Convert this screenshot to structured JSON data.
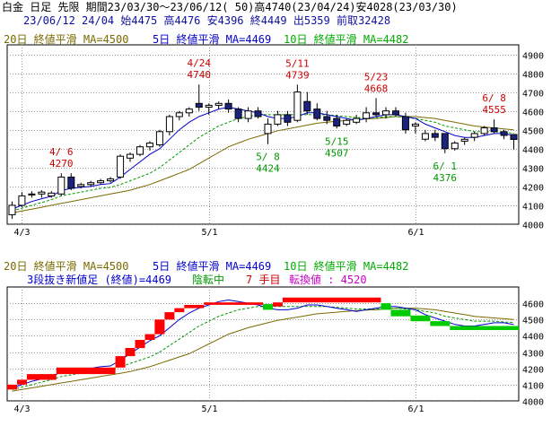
{
  "header": {
    "line1": "白金 日足 先限 期間23/03/30～23/06/12( 50)高4740(23/04/24)安4028(23/03/30)",
    "line2": "23/06/12 24/04 始4475 高4476 安4396 終4449 出5359 前取32428"
  },
  "colors": {
    "up_fill": "#ffffff",
    "down_fill": "#1a237e",
    "ma5": "#0000cc",
    "ma10": "#009900",
    "ma20": "#7a6a00",
    "ann_high": "#cc0000",
    "ann_low": "#009900",
    "brick_up": "#ff0000",
    "brick_down": "#00cc00",
    "grid": "#9a9a9a",
    "legend_ma20": "#7a6a00",
    "legend_ma5": "#0000cc",
    "legend_ma10": "#00aa00",
    "magenta": "#cc00cc"
  },
  "legend": {
    "ma20": "20日 終値平滑 MA=4500",
    "ma5": "5日 終値平滑 MA=4469",
    "ma10": "10日 終値平滑 MA=4482"
  },
  "lower_info": {
    "name": "3段抜き新値足 (終値)=4469",
    "state": "陰転中",
    "step": "7 手目",
    "reversal": "転換値 : 4520"
  },
  "chart_data": [
    {
      "type": "candlestick",
      "title": "白金 日足 先限",
      "x_ticks": [
        {
          "i": 1,
          "label": "4/3"
        },
        {
          "i": 20,
          "label": "5/1"
        },
        {
          "i": 41,
          "label": "6/1"
        }
      ],
      "ylim": [
        4000,
        4950
      ],
      "y_ticks": [
        4000,
        4100,
        4200,
        4300,
        4400,
        4500,
        4600,
        4700,
        4800,
        4900
      ],
      "ohlc": [
        [
          4050,
          4120,
          4028,
          4100
        ],
        [
          4100,
          4170,
          4090,
          4150
        ],
        [
          4160,
          4175,
          4140,
          4155
        ],
        [
          4160,
          4180,
          4140,
          4170
        ],
        [
          4150,
          4175,
          4140,
          4165
        ],
        [
          4160,
          4270,
          4150,
          4250
        ],
        [
          4250,
          4270,
          4180,
          4190
        ],
        [
          4200,
          4220,
          4190,
          4210
        ],
        [
          4210,
          4230,
          4200,
          4220
        ],
        [
          4220,
          4240,
          4210,
          4230
        ],
        [
          4230,
          4250,
          4220,
          4240
        ],
        [
          4250,
          4370,
          4240,
          4360
        ],
        [
          4350,
          4380,
          4330,
          4370
        ],
        [
          4370,
          4420,
          4360,
          4410
        ],
        [
          4410,
          4440,
          4390,
          4430
        ],
        [
          4420,
          4500,
          4410,
          4490
        ],
        [
          4490,
          4580,
          4470,
          4570
        ],
        [
          4570,
          4600,
          4550,
          4590
        ],
        [
          4590,
          4620,
          4570,
          4610
        ],
        [
          4640,
          4740,
          4600,
          4620
        ],
        [
          4620,
          4640,
          4580,
          4630
        ],
        [
          4630,
          4650,
          4610,
          4640
        ],
        [
          4640,
          4660,
          4590,
          4610
        ],
        [
          4610,
          4620,
          4540,
          4560
        ],
        [
          4560,
          4620,
          4540,
          4600
        ],
        [
          4600,
          4620,
          4560,
          4570
        ],
        [
          4480,
          4560,
          4424,
          4530
        ],
        [
          4530,
          4600,
          4520,
          4580
        ],
        [
          4580,
          4600,
          4520,
          4540
        ],
        [
          4550,
          4739,
          4540,
          4700
        ],
        [
          4650,
          4700,
          4580,
          4600
        ],
        [
          4610,
          4640,
          4550,
          4560
        ],
        [
          4570,
          4600,
          4530,
          4550
        ],
        [
          4560,
          4580,
          4507,
          4520
        ],
        [
          4530,
          4560,
          4520,
          4550
        ],
        [
          4540,
          4580,
          4530,
          4560
        ],
        [
          4560,
          4620,
          4540,
          4590
        ],
        [
          4590,
          4668,
          4570,
          4580
        ],
        [
          4580,
          4620,
          4560,
          4600
        ],
        [
          4600,
          4620,
          4570,
          4580
        ],
        [
          4570,
          4590,
          4480,
          4500
        ],
        [
          4520,
          4540,
          4480,
          4530
        ],
        [
          4450,
          4500,
          4440,
          4480
        ],
        [
          4480,
          4500,
          4440,
          4460
        ],
        [
          4480,
          4480,
          4376,
          4400
        ],
        [
          4400,
          4440,
          4390,
          4430
        ],
        [
          4440,
          4460,
          4420,
          4450
        ],
        [
          4460,
          4490,
          4440,
          4480
        ],
        [
          4480,
          4520,
          4470,
          4510
        ],
        [
          4510,
          4555,
          4480,
          4490
        ],
        [
          4490,
          4500,
          4450,
          4470
        ],
        [
          4475,
          4476,
          4396,
          4449
        ]
      ],
      "ma5": [
        4080,
        4100,
        4120,
        4135,
        4148,
        4178,
        4190,
        4195,
        4200,
        4210,
        4215,
        4250,
        4290,
        4330,
        4370,
        4400,
        4450,
        4500,
        4540,
        4570,
        4590,
        4610,
        4620,
        4610,
        4600,
        4590,
        4570,
        4560,
        4560,
        4570,
        4590,
        4590,
        4580,
        4570,
        4560,
        4550,
        4560,
        4570,
        4580,
        4580,
        4570,
        4560,
        4530,
        4510,
        4490,
        4470,
        4460,
        4460,
        4470,
        4480,
        4480,
        4469
      ],
      "ma10": [
        4070,
        4085,
        4100,
        4115,
        4130,
        4150,
        4160,
        4170,
        4180,
        4190,
        4195,
        4210,
        4230,
        4250,
        4270,
        4300,
        4340,
        4380,
        4420,
        4460,
        4490,
        4520,
        4540,
        4560,
        4570,
        4580,
        4580,
        4580,
        4580,
        4580,
        4580,
        4580,
        4580,
        4575,
        4570,
        4565,
        4565,
        4565,
        4570,
        4570,
        4565,
        4560,
        4550,
        4540,
        4520,
        4510,
        4500,
        4490,
        4490,
        4490,
        4485,
        4482
      ],
      "ma20": [
        4060,
        4070,
        4080,
        4090,
        4100,
        4110,
        4120,
        4130,
        4140,
        4150,
        4160,
        4170,
        4180,
        4195,
        4210,
        4230,
        4250,
        4270,
        4290,
        4320,
        4350,
        4380,
        4410,
        4430,
        4450,
        4465,
        4480,
        4495,
        4505,
        4515,
        4525,
        4535,
        4540,
        4545,
        4550,
        4555,
        4558,
        4560,
        4565,
        4570,
        4570,
        4570,
        4565,
        4560,
        4550,
        4540,
        4530,
        4520,
        4515,
        4510,
        4505,
        4500
      ],
      "annotations": [
        {
          "i": 5,
          "kind": "high",
          "date": "4/ 6",
          "value": "4270"
        },
        {
          "i": 19,
          "kind": "high",
          "date": "4/24",
          "value": "4740"
        },
        {
          "i": 26,
          "kind": "low",
          "date": "5/ 8",
          "value": "4424"
        },
        {
          "i": 29,
          "kind": "high",
          "date": "5/11",
          "value": "4739"
        },
        {
          "i": 33,
          "kind": "low",
          "date": "5/15",
          "value": "4507"
        },
        {
          "i": 37,
          "kind": "high",
          "date": "5/23",
          "value": "4668"
        },
        {
          "i": 44,
          "kind": "low",
          "date": "6/ 1",
          "value": "4376"
        },
        {
          "i": 49,
          "kind": "high",
          "date": "6/ 8",
          "value": "4555"
        }
      ]
    },
    {
      "type": "new-price-bricks",
      "x_ticks": [
        {
          "i": 1,
          "label": "4/3"
        },
        {
          "i": 20,
          "label": "5/1"
        },
        {
          "i": 41,
          "label": "6/1"
        }
      ],
      "ylim": [
        4000,
        4700
      ],
      "y_ticks": [
        4000,
        4100,
        4200,
        4300,
        4400,
        4500,
        4600
      ],
      "bricks": [
        {
          "start": 0,
          "end": 1,
          "lo": 4070,
          "hi": 4100,
          "dir": "up"
        },
        {
          "start": 1,
          "end": 2,
          "lo": 4100,
          "hi": 4130,
          "dir": "up"
        },
        {
          "start": 2,
          "end": 5,
          "lo": 4130,
          "hi": 4165,
          "dir": "up"
        },
        {
          "start": 5,
          "end": 11,
          "lo": 4165,
          "hi": 4205,
          "dir": "up"
        },
        {
          "start": 11,
          "end": 12,
          "lo": 4205,
          "hi": 4275,
          "dir": "up"
        },
        {
          "start": 12,
          "end": 13,
          "lo": 4275,
          "hi": 4325,
          "dir": "up"
        },
        {
          "start": 13,
          "end": 14,
          "lo": 4325,
          "hi": 4375,
          "dir": "up"
        },
        {
          "start": 14,
          "end": 15,
          "lo": 4375,
          "hi": 4410,
          "dir": "up"
        },
        {
          "start": 15,
          "end": 16,
          "lo": 4410,
          "hi": 4500,
          "dir": "up"
        },
        {
          "start": 16,
          "end": 17,
          "lo": 4500,
          "hi": 4545,
          "dir": "up"
        },
        {
          "start": 17,
          "end": 18,
          "lo": 4545,
          "hi": 4570,
          "dir": "up"
        },
        {
          "start": 18,
          "end": 20,
          "lo": 4570,
          "hi": 4590,
          "dir": "up"
        },
        {
          "start": 20,
          "end": 26,
          "lo": 4590,
          "hi": 4605,
          "dir": "up"
        },
        {
          "start": 26,
          "end": 27,
          "lo": 4560,
          "hi": 4595,
          "dir": "down"
        },
        {
          "start": 27,
          "end": 28,
          "lo": 4580,
          "hi": 4605,
          "dir": "up"
        },
        {
          "start": 28,
          "end": 38,
          "lo": 4605,
          "hi": 4635,
          "dir": "up"
        },
        {
          "start": 38,
          "end": 39,
          "lo": 4560,
          "hi": 4600,
          "dir": "down"
        },
        {
          "start": 39,
          "end": 41,
          "lo": 4520,
          "hi": 4560,
          "dir": "down"
        },
        {
          "start": 41,
          "end": 43,
          "lo": 4490,
          "hi": 4525,
          "dir": "down"
        },
        {
          "start": 43,
          "end": 45,
          "lo": 4460,
          "hi": 4490,
          "dir": "down"
        },
        {
          "start": 45,
          "end": 52,
          "lo": 4435,
          "hi": 4460,
          "dir": "down"
        }
      ]
    }
  ]
}
